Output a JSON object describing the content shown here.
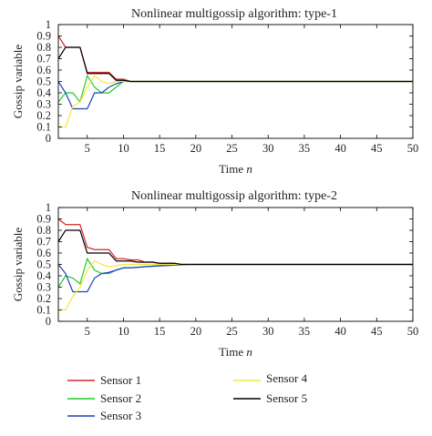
{
  "chart_data": [
    {
      "type": "line",
      "title": "Nonlinear multigossip algorithm: type-1",
      "xlabel": "Time",
      "xlabel_var": "n",
      "ylabel": "Gossip variable",
      "xlim": [
        1,
        50
      ],
      "ylim": [
        0,
        1
      ],
      "xticks": [
        "5",
        "10",
        "15",
        "20",
        "25",
        "30",
        "35",
        "40",
        "45",
        "50"
      ],
      "yticks": [
        "0",
        "0.1",
        "0.2",
        "0.3",
        "0.4",
        "0.5",
        "0.6",
        "0.7",
        "0.8",
        "0.9",
        "1"
      ],
      "grid": false,
      "series": [
        {
          "name": "Sensor 1",
          "color": "#d62728",
          "points": [
            [
              1,
              0.9
            ],
            [
              2,
              0.8
            ],
            [
              3,
              0.8
            ],
            [
              4,
              0.8
            ],
            [
              5,
              0.58
            ],
            [
              6,
              0.58
            ],
            [
              7,
              0.58
            ],
            [
              8,
              0.58
            ],
            [
              9,
              0.52
            ],
            [
              10,
              0.52
            ],
            [
              11,
              0.5
            ],
            [
              12,
              0.5
            ],
            [
              50,
              0.5
            ]
          ]
        },
        {
          "name": "Sensor 2",
          "color": "#22cc22",
          "points": [
            [
              1,
              0.32
            ],
            [
              2,
              0.4
            ],
            [
              3,
              0.4
            ],
            [
              4,
              0.32
            ],
            [
              5,
              0.55
            ],
            [
              6,
              0.45
            ],
            [
              7,
              0.4
            ],
            [
              8,
              0.4
            ],
            [
              9,
              0.45
            ],
            [
              10,
              0.5
            ],
            [
              11,
              0.5
            ],
            [
              50,
              0.5
            ]
          ]
        },
        {
          "name": "Sensor 3",
          "color": "#1f3fbf",
          "points": [
            [
              1,
              0.5
            ],
            [
              2,
              0.4
            ],
            [
              3,
              0.26
            ],
            [
              4,
              0.26
            ],
            [
              5,
              0.26
            ],
            [
              6,
              0.4
            ],
            [
              7,
              0.4
            ],
            [
              8,
              0.45
            ],
            [
              9,
              0.48
            ],
            [
              10,
              0.5
            ],
            [
              11,
              0.5
            ],
            [
              50,
              0.5
            ]
          ]
        },
        {
          "name": "Sensor 4",
          "color": "#f5e642",
          "points": [
            [
              1,
              0.1
            ],
            [
              2,
              0.1
            ],
            [
              3,
              0.28
            ],
            [
              4,
              0.32
            ],
            [
              5,
              0.45
            ],
            [
              6,
              0.55
            ],
            [
              7,
              0.5
            ],
            [
              8,
              0.48
            ],
            [
              9,
              0.5
            ],
            [
              10,
              0.5
            ],
            [
              50,
              0.5
            ]
          ]
        },
        {
          "name": "Sensor 5",
          "color": "#000000",
          "points": [
            [
              1,
              0.7
            ],
            [
              2,
              0.8
            ],
            [
              3,
              0.8
            ],
            [
              4,
              0.8
            ],
            [
              5,
              0.57
            ],
            [
              6,
              0.57
            ],
            [
              7,
              0.57
            ],
            [
              8,
              0.57
            ],
            [
              9,
              0.51
            ],
            [
              10,
              0.51
            ],
            [
              11,
              0.5
            ],
            [
              12,
              0.5
            ],
            [
              50,
              0.5
            ]
          ]
        }
      ]
    },
    {
      "type": "line",
      "title": "Nonlinear multigossip algorithm: type-2",
      "xlabel": "Time",
      "xlabel_var": "n",
      "ylabel": "Gossip variable",
      "xlim": [
        1,
        50
      ],
      "ylim": [
        0,
        1
      ],
      "xticks": [
        "5",
        "10",
        "15",
        "20",
        "25",
        "30",
        "35",
        "40",
        "45",
        "50"
      ],
      "yticks": [
        "0",
        "0.1",
        "0.2",
        "0.3",
        "0.4",
        "0.5",
        "0.6",
        "0.7",
        "0.8",
        "0.9",
        "1"
      ],
      "grid": false,
      "series": [
        {
          "name": "Sensor 1",
          "color": "#d62728",
          "points": [
            [
              1,
              0.9
            ],
            [
              2,
              0.85
            ],
            [
              3,
              0.85
            ],
            [
              4,
              0.85
            ],
            [
              5,
              0.65
            ],
            [
              6,
              0.63
            ],
            [
              7,
              0.63
            ],
            [
              8,
              0.63
            ],
            [
              9,
              0.55
            ],
            [
              10,
              0.55
            ],
            [
              11,
              0.54
            ],
            [
              12,
              0.54
            ],
            [
              13,
              0.52
            ],
            [
              14,
              0.52
            ],
            [
              15,
              0.51
            ],
            [
              17,
              0.51
            ],
            [
              18,
              0.5
            ],
            [
              50,
              0.5
            ]
          ]
        },
        {
          "name": "Sensor 2",
          "color": "#22cc22",
          "points": [
            [
              1,
              0.3
            ],
            [
              2,
              0.4
            ],
            [
              3,
              0.38
            ],
            [
              4,
              0.33
            ],
            [
              5,
              0.55
            ],
            [
              6,
              0.45
            ],
            [
              7,
              0.42
            ],
            [
              8,
              0.42
            ],
            [
              9,
              0.45
            ],
            [
              10,
              0.47
            ],
            [
              11,
              0.47
            ],
            [
              13,
              0.48
            ],
            [
              15,
              0.49
            ],
            [
              18,
              0.5
            ],
            [
              50,
              0.5
            ]
          ]
        },
        {
          "name": "Sensor 3",
          "color": "#1f3fbf",
          "points": [
            [
              1,
              0.5
            ],
            [
              2,
              0.42
            ],
            [
              3,
              0.26
            ],
            [
              4,
              0.26
            ],
            [
              5,
              0.26
            ],
            [
              6,
              0.38
            ],
            [
              7,
              0.42
            ],
            [
              8,
              0.43
            ],
            [
              9,
              0.45
            ],
            [
              10,
              0.47
            ],
            [
              11,
              0.47
            ],
            [
              13,
              0.48
            ],
            [
              16,
              0.49
            ],
            [
              19,
              0.5
            ],
            [
              50,
              0.5
            ]
          ]
        },
        {
          "name": "Sensor 4",
          "color": "#f5e642",
          "points": [
            [
              1,
              0.1
            ],
            [
              2,
              0.1
            ],
            [
              3,
              0.22
            ],
            [
              4,
              0.3
            ],
            [
              5,
              0.45
            ],
            [
              6,
              0.53
            ],
            [
              7,
              0.5
            ],
            [
              8,
              0.48
            ],
            [
              9,
              0.49
            ],
            [
              10,
              0.5
            ],
            [
              13,
              0.5
            ],
            [
              50,
              0.5
            ]
          ]
        },
        {
          "name": "Sensor 5",
          "color": "#000000",
          "points": [
            [
              1,
              0.7
            ],
            [
              2,
              0.8
            ],
            [
              3,
              0.8
            ],
            [
              4,
              0.8
            ],
            [
              5,
              0.6
            ],
            [
              6,
              0.6
            ],
            [
              7,
              0.6
            ],
            [
              8,
              0.6
            ],
            [
              9,
              0.53
            ],
            [
              10,
              0.53
            ],
            [
              11,
              0.53
            ],
            [
              12,
              0.52
            ],
            [
              14,
              0.52
            ],
            [
              15,
              0.51
            ],
            [
              17,
              0.51
            ],
            [
              18,
              0.5
            ],
            [
              50,
              0.5
            ]
          ]
        }
      ]
    }
  ],
  "legend": {
    "entries": [
      {
        "name": "Sensor 1",
        "color": "#d62728"
      },
      {
        "name": "Sensor 2",
        "color": "#22cc22"
      },
      {
        "name": "Sensor 3",
        "color": "#1f3fbf"
      },
      {
        "name": "Sensor 4",
        "color": "#f5e642"
      },
      {
        "name": "Sensor 5",
        "color": "#000000"
      }
    ]
  }
}
